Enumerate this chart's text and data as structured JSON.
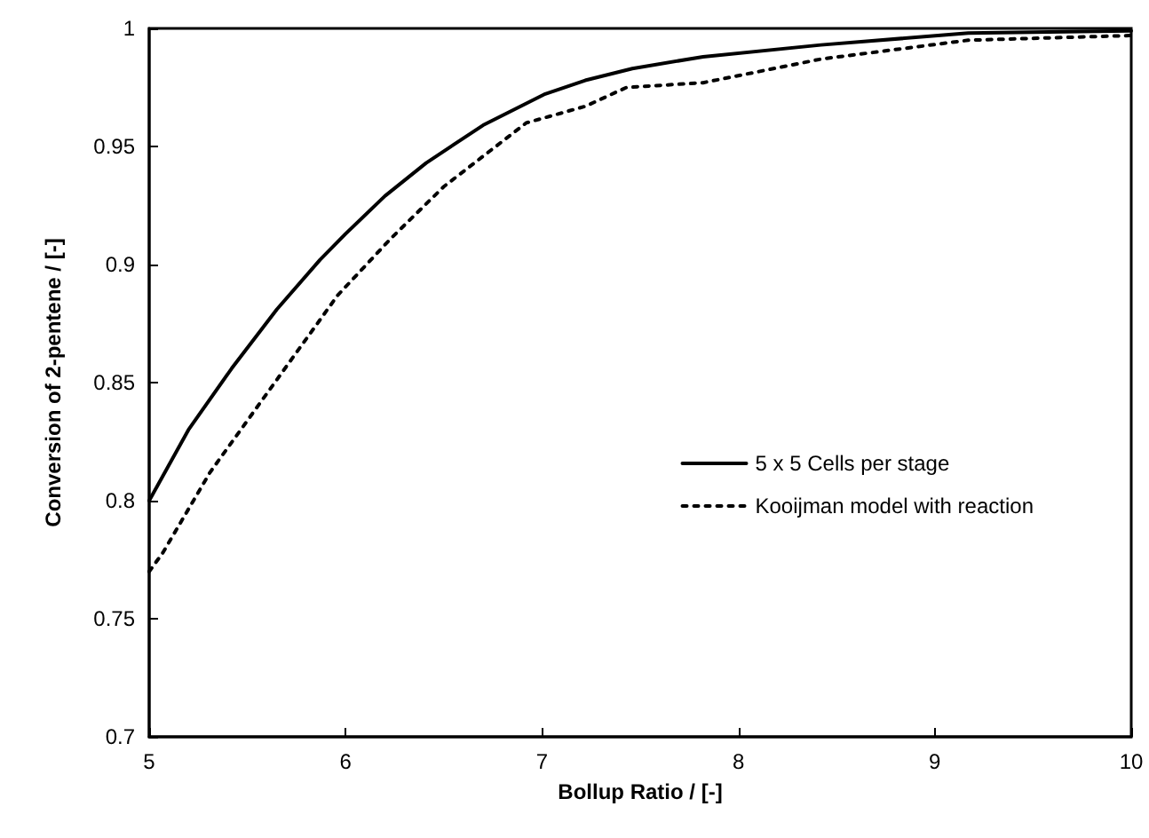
{
  "chart_data": {
    "type": "line",
    "xlabel": "Bollup Ratio / [-]",
    "ylabel": "Conversion of 2-pentene / [-]",
    "xlim": [
      5,
      10
    ],
    "xticks": [
      5,
      6,
      7,
      8,
      9,
      10
    ],
    "ylim": [
      0.7,
      1
    ],
    "yticks": [
      0.7,
      0.75,
      0.8,
      0.85,
      0.9,
      0.95,
      1
    ],
    "grid": false,
    "legend": "right",
    "marker": "none",
    "series": [
      {
        "name": "5 x 5 Cells per stage",
        "color": "#000000",
        "line_style": "solid",
        "x": [
          5,
          5.2,
          5.42,
          5.65,
          5.87,
          6,
          6.2,
          6.41,
          6.7,
          7.01,
          7.22,
          7.46,
          7.82,
          8.42,
          9.17,
          10
        ],
        "values": [
          0.8,
          0.83,
          0.856,
          0.881,
          0.902,
          0.913,
          0.929,
          0.943,
          0.959,
          0.972,
          0.978,
          0.983,
          0.988,
          0.993,
          0.998,
          0.999
        ]
      },
      {
        "name": "Kooijman model with reaction",
        "color": "#000000",
        "line_style": "dotted",
        "x": [
          5,
          5.07,
          5.31,
          5.57,
          5.96,
          6.23,
          6.5,
          6.92,
          7.22,
          7.43,
          7.82,
          8.42,
          9.17,
          10
        ],
        "values": [
          0.77,
          0.778,
          0.812,
          0.842,
          0.887,
          0.911,
          0.933,
          0.96,
          0.967,
          0.975,
          0.977,
          0.987,
          0.995,
          0.997
        ]
      }
    ]
  }
}
